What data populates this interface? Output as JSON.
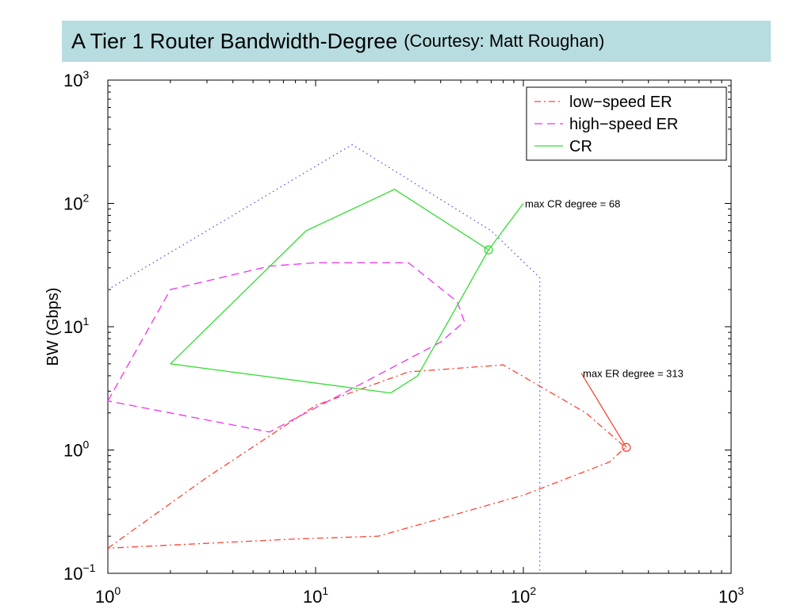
{
  "slide": {
    "title": "A Tier 1 Router Bandwidth-Degree",
    "title_note": "(Courtesy: Matt Roughan)",
    "banner_color": "#b8dde0"
  },
  "chart_data": {
    "type": "line",
    "title": "",
    "xlabel": "",
    "ylabel": "BW (Gbps)",
    "xscale": "log",
    "yscale": "log",
    "xlim": [
      1,
      1000
    ],
    "ylim": [
      0.1,
      1000
    ],
    "x_ticks": [
      {
        "value": 1,
        "base": "10",
        "exp": "0"
      },
      {
        "value": 10,
        "base": "10",
        "exp": "1"
      },
      {
        "value": 100,
        "base": "10",
        "exp": "2"
      },
      {
        "value": 1000,
        "base": "10",
        "exp": "3"
      }
    ],
    "y_ticks": [
      {
        "value": 0.1,
        "base": "10",
        "exp": "−1"
      },
      {
        "value": 1,
        "base": "10",
        "exp": "0"
      },
      {
        "value": 10,
        "base": "10",
        "exp": "1"
      },
      {
        "value": 100,
        "base": "10",
        "exp": "2"
      },
      {
        "value": 1000,
        "base": "10",
        "exp": "3"
      }
    ],
    "grid": false,
    "legend_position": "top-right",
    "series": [
      {
        "name": "low−speed ER",
        "color": "#ff4433",
        "dash": "dashdot",
        "closed": true,
        "points": [
          [
            1,
            0.16
          ],
          [
            3,
            0.6
          ],
          [
            10,
            2.3
          ],
          [
            28,
            4.3
          ],
          [
            80,
            4.9
          ],
          [
            200,
            2.0
          ],
          [
            310,
            1.05
          ],
          [
            260,
            0.8
          ],
          [
            100,
            0.43
          ],
          [
            20,
            0.2
          ],
          [
            8,
            0.19
          ],
          [
            1,
            0.16
          ]
        ]
      },
      {
        "name": "high−speed ER",
        "color": "#ee33ee",
        "dash": "dashed",
        "closed": true,
        "points": [
          [
            1,
            2.5
          ],
          [
            2,
            20
          ],
          [
            6,
            31
          ],
          [
            10,
            33
          ],
          [
            28,
            33
          ],
          [
            48,
            16
          ],
          [
            52,
            11
          ],
          [
            40,
            7.5
          ],
          [
            6,
            1.4
          ],
          [
            1,
            2.5
          ]
        ]
      },
      {
        "name": "CR",
        "color": "#33dd33",
        "dash": "solid",
        "closed": true,
        "points": [
          [
            2,
            5
          ],
          [
            9,
            60
          ],
          [
            24,
            130
          ],
          [
            68,
            42
          ],
          [
            31,
            4
          ],
          [
            23,
            2.9
          ],
          [
            2,
            5
          ]
        ]
      },
      {
        "name": "",
        "color": "#5555dd",
        "dash": "dotted",
        "closed": false,
        "in_legend": false,
        "points": [
          [
            1,
            20
          ],
          [
            15,
            300
          ],
          [
            70,
            60
          ],
          [
            120,
            25
          ],
          [
            120,
            0.1
          ]
        ]
      }
    ],
    "annotations": [
      {
        "text": "max CR degree = 68",
        "x": 68,
        "y": 42,
        "text_x": 100,
        "text_y": 100,
        "color": "#33dd33",
        "marker": "circle"
      },
      {
        "text": "max ER degree = 313",
        "x": 313,
        "y": 1.05,
        "text_x": 190,
        "text_y": 4.2,
        "color": "#ff4433",
        "marker": "circle"
      }
    ]
  }
}
